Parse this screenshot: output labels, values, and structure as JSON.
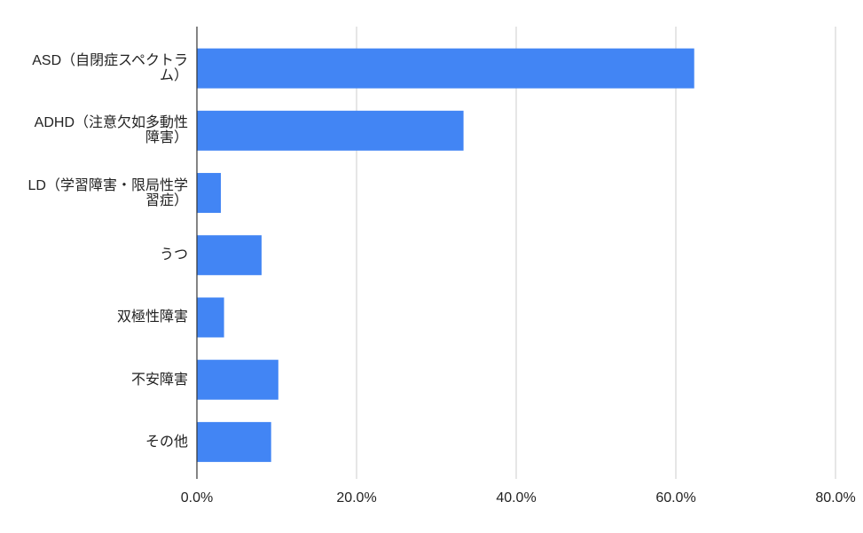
{
  "chart_data": {
    "type": "bar",
    "orientation": "horizontal",
    "categories": [
      "ASD（自閉症スペクトラム）",
      "ADHD（注意欠如多動性障害）",
      "LD（学習障害・限局性学習症）",
      "うつ",
      "双極性障害",
      "不安障害",
      "その他"
    ],
    "values": [
      62.3,
      33.4,
      3.0,
      8.1,
      3.4,
      10.2,
      9.3
    ],
    "color": "#4285f4",
    "xlim": [
      0,
      80
    ],
    "xticks": [
      {
        "value": 0,
        "label": "0.0%"
      },
      {
        "value": 20,
        "label": "20.0%"
      },
      {
        "value": 40,
        "label": "40.0%"
      },
      {
        "value": 60,
        "label": "60.0%"
      },
      {
        "value": 80,
        "label": "80.0%"
      }
    ],
    "grid": true
  }
}
